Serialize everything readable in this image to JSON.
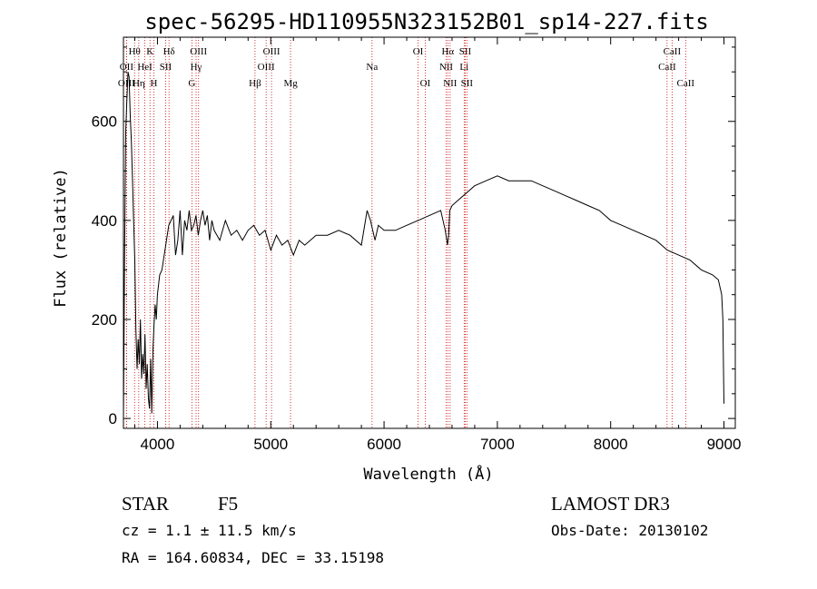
{
  "title": "spec-56295-HD110955N323152B01_sp14-227.fits",
  "info": {
    "class": "STAR",
    "subclass": "F5",
    "survey": "LAMOST DR3",
    "cz": "cz = 1.1 ± 11.5 km/s",
    "obs_date": "Obs-Date: 20130102",
    "radec": "RA = 164.60834, DEC =  33.15198"
  },
  "chart_data": {
    "type": "line",
    "title": "spec-56295-HD110955N323152B01_sp14-227.fits",
    "xlabel": "Wavelength (Å)",
    "ylabel": "Flux (relative)",
    "xlim": [
      3700,
      9100
    ],
    "ylim": [
      -20,
      770
    ],
    "x_ticks": [
      4000,
      5000,
      6000,
      7000,
      8000,
      9000
    ],
    "y_ticks": [
      0,
      200,
      400,
      600
    ],
    "grid": false,
    "line_color": "#000000",
    "marker_color": "#cc0000",
    "lines": [
      {
        "label": "OII",
        "wavelength": 3727,
        "row": 2
      },
      {
        "label": "OIII",
        "wavelength": 3727,
        "row": 3
      },
      {
        "label": "Hθ",
        "wavelength": 3798,
        "row": 1
      },
      {
        "label": "Hη",
        "wavelength": 3835,
        "row": 3
      },
      {
        "label": "HeI",
        "wavelength": 3889,
        "row": 2
      },
      {
        "label": "K",
        "wavelength": 3934,
        "row": 1
      },
      {
        "label": "H",
        "wavelength": 3968,
        "row": 3
      },
      {
        "label": "SII",
        "wavelength": 4072,
        "row": 2
      },
      {
        "label": "Hδ",
        "wavelength": 4102,
        "row": 1
      },
      {
        "label": "G",
        "wavelength": 4304,
        "row": 3
      },
      {
        "label": "Hγ",
        "wavelength": 4341,
        "row": 2
      },
      {
        "label": "OIII",
        "wavelength": 4363,
        "row": 1
      },
      {
        "label": "Hβ",
        "wavelength": 4861,
        "row": 3
      },
      {
        "label": "OIII",
        "wavelength": 4959,
        "row": 2
      },
      {
        "label": "OIII",
        "wavelength": 5007,
        "row": 1
      },
      {
        "label": "Mg",
        "wavelength": 5175,
        "row": 3
      },
      {
        "label": "Na",
        "wavelength": 5894,
        "row": 2
      },
      {
        "label": "OI",
        "wavelength": 6300,
        "row": 1
      },
      {
        "label": "OI",
        "wavelength": 6363,
        "row": 3
      },
      {
        "label": "NII",
        "wavelength": 6548,
        "row": 2
      },
      {
        "label": "Hα",
        "wavelength": 6563,
        "row": 1
      },
      {
        "label": "NII",
        "wavelength": 6583,
        "row": 3
      },
      {
        "label": "Li",
        "wavelength": 6707,
        "row": 2
      },
      {
        "label": "SII",
        "wavelength": 6716,
        "row": 1
      },
      {
        "label": "SII",
        "wavelength": 6731,
        "row": 3
      },
      {
        "label": "CaII",
        "wavelength": 8498,
        "row": 2
      },
      {
        "label": "CaII",
        "wavelength": 8542,
        "row": 1
      },
      {
        "label": "CaII",
        "wavelength": 8662,
        "row": 3
      }
    ],
    "series": [
      {
        "x": [
          3700,
          3710,
          3720,
          3730,
          3740,
          3750,
          3760,
          3770,
          3780,
          3790,
          3800,
          3810,
          3820,
          3830,
          3840,
          3850,
          3860,
          3870,
          3880,
          3890,
          3900,
          3910,
          3920,
          3930,
          3940,
          3950,
          3960,
          3970,
          3980,
          3990,
          4000,
          4020,
          4040,
          4060,
          4080,
          4100,
          4120,
          4140,
          4160,
          4180,
          4200,
          4220,
          4240,
          4260,
          4280,
          4300,
          4320,
          4340,
          4360,
          4380,
          4400,
          4420,
          4440,
          4460,
          4480,
          4500,
          4550,
          4600,
          4650,
          4700,
          4750,
          4800,
          4850,
          4900,
          4950,
          5000,
          5050,
          5100,
          5150,
          5200,
          5250,
          5300,
          5400,
          5500,
          5600,
          5700,
          5800,
          5850,
          5880,
          5900,
          5920,
          5950,
          6000,
          6100,
          6200,
          6300,
          6400,
          6500,
          6540,
          6560,
          6570,
          6580,
          6600,
          6650,
          6700,
          6800,
          6900,
          7000,
          7100,
          7200,
          7300,
          7400,
          7500,
          7600,
          7700,
          7800,
          7900,
          8000,
          8100,
          8200,
          8300,
          8400,
          8500,
          8600,
          8700,
          8800,
          8900,
          8950,
          8980,
          8990,
          9000
        ],
        "y": [
          0,
          320,
          580,
          640,
          700,
          690,
          610,
          560,
          480,
          400,
          320,
          180,
          100,
          160,
          110,
          200,
          80,
          130,
          90,
          170,
          60,
          110,
          40,
          20,
          120,
          10,
          140,
          190,
          230,
          200,
          250,
          290,
          300,
          330,
          360,
          390,
          400,
          410,
          330,
          360,
          420,
          330,
          400,
          380,
          420,
          380,
          390,
          410,
          370,
          400,
          420,
          390,
          410,
          360,
          400,
          380,
          360,
          400,
          370,
          380,
          360,
          380,
          390,
          370,
          380,
          340,
          370,
          350,
          360,
          330,
          360,
          350,
          370,
          370,
          380,
          370,
          350,
          420,
          400,
          380,
          360,
          390,
          380,
          380,
          390,
          400,
          410,
          420,
          380,
          350,
          370,
          420,
          430,
          440,
          450,
          470,
          480,
          490,
          480,
          480,
          480,
          470,
          460,
          450,
          440,
          430,
          420,
          400,
          390,
          380,
          370,
          360,
          340,
          330,
          320,
          300,
          290,
          280,
          250,
          200,
          30
        ]
      }
    ]
  }
}
